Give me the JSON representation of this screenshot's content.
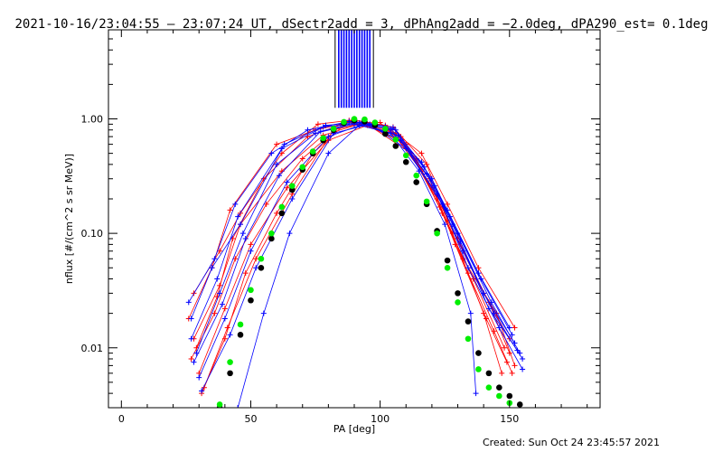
{
  "chart_data": {
    "type": "line",
    "title": "2021-10-16/23:04:55 – 23:07:24 UT, dSectr2add = 3, dPhAng2add = −2.0deg, dPA290_est=  0.1deg",
    "xlabel": "PA [deg]",
    "ylabel": "nflux [#/(cm^2 s sr MeV)]",
    "footer": "Created: Sun Oct 24 23:45:57 2021",
    "x_scale": "linear",
    "y_scale": "log",
    "xlim": [
      -5,
      185
    ],
    "ylim": [
      0.003,
      6
    ],
    "x_ticks": [
      {
        "value": 0,
        "label": "0"
      },
      {
        "value": 50,
        "label": "50"
      },
      {
        "value": 100,
        "label": "100"
      },
      {
        "value": 150,
        "label": "150"
      }
    ],
    "y_ticks": [
      {
        "value": 0.01,
        "label": "0.01"
      },
      {
        "value": 0.1,
        "label": "0.10"
      },
      {
        "value": 1,
        "label": "1.00"
      }
    ],
    "colors": {
      "red": "#ff0000",
      "blue": "#0000ff",
      "green": "#00ee00",
      "black": "#000000"
    },
    "series": [
      {
        "color": "red",
        "marker": "plus",
        "lines": [
          [
            [
              26,
              0.018
            ],
            [
              35,
              0.05
            ],
            [
              42,
              0.16
            ],
            [
              60,
              0.6
            ],
            [
              75,
              0.8
            ],
            [
              90,
              0.95
            ],
            [
              105,
              0.85
            ],
            [
              118,
              0.4
            ],
            [
              126,
              0.13
            ],
            [
              140,
              0.03
            ],
            [
              150,
              0.012
            ]
          ],
          [
            [
              28,
              0.012
            ],
            [
              38,
              0.035
            ],
            [
              46,
              0.12
            ],
            [
              62,
              0.35
            ],
            [
              78,
              0.72
            ],
            [
              92,
              0.9
            ],
            [
              108,
              0.7
            ],
            [
              122,
              0.2
            ],
            [
              132,
              0.06
            ],
            [
              145,
              0.02
            ],
            [
              152,
              0.007
            ]
          ],
          [
            [
              30,
              0.006
            ],
            [
              40,
              0.022
            ],
            [
              50,
              0.08
            ],
            [
              64,
              0.25
            ],
            [
              80,
              0.65
            ],
            [
              95,
              0.88
            ],
            [
              110,
              0.6
            ],
            [
              120,
              0.25
            ],
            [
              130,
              0.09
            ],
            [
              142,
              0.025
            ],
            [
              150,
              0.009
            ]
          ],
          [
            [
              27,
              0.008
            ],
            [
              36,
              0.02
            ],
            [
              44,
              0.06
            ],
            [
              56,
              0.18
            ],
            [
              70,
              0.45
            ],
            [
              86,
              0.92
            ],
            [
              100,
              0.93
            ],
            [
              114,
              0.45
            ],
            [
              124,
              0.15
            ],
            [
              136,
              0.04
            ],
            [
              148,
              0.01
            ]
          ],
          [
            [
              31,
              0.004
            ],
            [
              40,
              0.012
            ],
            [
              48,
              0.045
            ],
            [
              60,
              0.15
            ],
            [
              74,
              0.5
            ],
            [
              88,
              0.97
            ],
            [
              104,
              0.8
            ],
            [
              116,
              0.35
            ],
            [
              128,
              0.1
            ],
            [
              140,
              0.02
            ],
            [
              147,
              0.006
            ]
          ],
          [
            [
              28,
              0.03
            ],
            [
              38,
              0.07
            ],
            [
              46,
              0.15
            ],
            [
              62,
              0.5
            ],
            [
              76,
              0.9
            ],
            [
              90,
              0.98
            ],
            [
              102,
              0.88
            ],
            [
              116,
              0.5
            ],
            [
              126,
              0.18
            ],
            [
              138,
              0.05
            ],
            [
              152,
              0.015
            ]
          ],
          [
            [
              29,
              0.01
            ],
            [
              37,
              0.028
            ],
            [
              43,
              0.09
            ],
            [
              55,
              0.3
            ],
            [
              72,
              0.7
            ],
            [
              89,
              0.96
            ],
            [
              106,
              0.75
            ],
            [
              119,
              0.3
            ],
            [
              129,
              0.08
            ],
            [
              141,
              0.018
            ],
            [
              149,
              0.0075
            ]
          ],
          [
            [
              32,
              0.0045
            ],
            [
              41,
              0.015
            ],
            [
              52,
              0.06
            ],
            [
              66,
              0.22
            ],
            [
              82,
              0.8
            ],
            [
              94,
              0.93
            ],
            [
              112,
              0.5
            ],
            [
              123,
              0.17
            ],
            [
              134,
              0.045
            ],
            [
              144,
              0.014
            ],
            [
              151,
              0.006
            ]
          ]
        ]
      },
      {
        "color": "blue",
        "marker": "plus",
        "lines": [
          [
            [
              27,
              0.012
            ],
            [
              37,
              0.04
            ],
            [
              45,
              0.14
            ],
            [
              62,
              0.55
            ],
            [
              78,
              0.85
            ],
            [
              92,
              0.92
            ],
            [
              106,
              0.8
            ],
            [
              120,
              0.3
            ],
            [
              130,
              0.1
            ],
            [
              143,
              0.025
            ],
            [
              154,
              0.009
            ]
          ],
          [
            [
              29,
              0.009
            ],
            [
              38,
              0.03
            ],
            [
              47,
              0.1
            ],
            [
              60,
              0.4
            ],
            [
              75,
              0.75
            ],
            [
              90,
              0.9
            ],
            [
              104,
              0.82
            ],
            [
              118,
              0.33
            ],
            [
              128,
              0.12
            ],
            [
              140,
              0.03
            ],
            [
              152,
              0.011
            ]
          ],
          [
            [
              26,
              0.025
            ],
            [
              36,
              0.06
            ],
            [
              44,
              0.18
            ],
            [
              58,
              0.5
            ],
            [
              72,
              0.8
            ],
            [
              88,
              0.95
            ],
            [
              102,
              0.86
            ],
            [
              116,
              0.42
            ],
            [
              126,
              0.16
            ],
            [
              138,
              0.045
            ],
            [
              150,
              0.015
            ]
          ],
          [
            [
              30,
              0.0055
            ],
            [
              40,
              0.018
            ],
            [
              50,
              0.07
            ],
            [
              64,
              0.28
            ],
            [
              80,
              0.7
            ],
            [
              94,
              0.91
            ],
            [
              108,
              0.65
            ],
            [
              122,
              0.22
            ],
            [
              132,
              0.07
            ],
            [
              144,
              0.02
            ],
            [
              155,
              0.008
            ]
          ],
          [
            [
              28,
              0.0075
            ],
            [
              39,
              0.024
            ],
            [
              48,
              0.09
            ],
            [
              61,
              0.32
            ],
            [
              77,
              0.78
            ],
            [
              91,
              0.93
            ],
            [
              107,
              0.72
            ],
            [
              121,
              0.26
            ],
            [
              131,
              0.085
            ],
            [
              142,
              0.022
            ],
            [
              153,
              0.0095
            ]
          ],
          [
            [
              31,
              0.0042
            ],
            [
              42,
              0.013
            ],
            [
              52,
              0.05
            ],
            [
              66,
              0.2
            ],
            [
              82,
              0.75
            ],
            [
              96,
              0.9
            ],
            [
              110,
              0.55
            ],
            [
              124,
              0.18
            ],
            [
              134,
              0.05
            ],
            [
              146,
              0.015
            ],
            [
              155,
              0.0065
            ]
          ],
          [
            [
              27,
              0.018
            ],
            [
              35,
              0.05
            ],
            [
              46,
              0.12
            ],
            [
              63,
              0.6
            ],
            [
              79,
              0.88
            ],
            [
              93,
              0.94
            ],
            [
              105,
              0.84
            ],
            [
              117,
              0.38
            ],
            [
              127,
              0.14
            ],
            [
              139,
              0.04
            ],
            [
              151,
              0.013
            ]
          ],
          [
            [
              45,
              0.003
            ],
            [
              55,
              0.02
            ],
            [
              65,
              0.1
            ],
            [
              80,
              0.5
            ],
            [
              92,
              0.88
            ],
            [
              104,
              0.75
            ],
            [
              115,
              0.35
            ],
            [
              125,
              0.12
            ],
            [
              135,
              0.02
            ],
            [
              137,
              0.004
            ]
          ]
        ]
      },
      {
        "color": "black",
        "marker": "dot",
        "points": [
          [
            38,
            0.003
          ],
          [
            42,
            0.006
          ],
          [
            46,
            0.013
          ],
          [
            50,
            0.026
          ],
          [
            54,
            0.05
          ],
          [
            58,
            0.09
          ],
          [
            62,
            0.15
          ],
          [
            66,
            0.24
          ],
          [
            70,
            0.36
          ],
          [
            74,
            0.5
          ],
          [
            78,
            0.65
          ],
          [
            82,
            0.8
          ],
          [
            86,
            0.92
          ],
          [
            90,
            0.97
          ],
          [
            94,
            0.95
          ],
          [
            98,
            0.88
          ],
          [
            102,
            0.74
          ],
          [
            106,
            0.58
          ],
          [
            110,
            0.42
          ],
          [
            114,
            0.28
          ],
          [
            118,
            0.18
          ],
          [
            122,
            0.105
          ],
          [
            126,
            0.058
          ],
          [
            130,
            0.03
          ],
          [
            134,
            0.017
          ],
          [
            138,
            0.009
          ],
          [
            142,
            0.006
          ],
          [
            146,
            0.0045
          ],
          [
            150,
            0.0038
          ],
          [
            154,
            0.0032
          ]
        ]
      },
      {
        "color": "green",
        "marker": "dot",
        "points": [
          [
            38,
            0.0032
          ],
          [
            42,
            0.0075
          ],
          [
            46,
            0.016
          ],
          [
            50,
            0.032
          ],
          [
            54,
            0.06
          ],
          [
            58,
            0.1
          ],
          [
            62,
            0.17
          ],
          [
            66,
            0.26
          ],
          [
            70,
            0.38
          ],
          [
            74,
            0.52
          ],
          [
            78,
            0.68
          ],
          [
            82,
            0.82
          ],
          [
            86,
            0.94
          ],
          [
            90,
            1.0
          ],
          [
            94,
            0.99
          ],
          [
            98,
            0.93
          ],
          [
            102,
            0.82
          ],
          [
            106,
            0.66
          ],
          [
            110,
            0.48
          ],
          [
            114,
            0.32
          ],
          [
            118,
            0.19
          ],
          [
            122,
            0.1
          ],
          [
            126,
            0.05
          ],
          [
            130,
            0.025
          ],
          [
            134,
            0.012
          ],
          [
            138,
            0.0065
          ],
          [
            142,
            0.0045
          ],
          [
            146,
            0.0038
          ],
          [
            150,
            0.0033
          ]
        ]
      },
      {
        "color": "blue",
        "marker": "spike",
        "points": [
          [
            84,
            6
          ],
          [
            85,
            6
          ],
          [
            86,
            6
          ],
          [
            87,
            6
          ],
          [
            88,
            6
          ],
          [
            89,
            6
          ],
          [
            90,
            6
          ],
          [
            91,
            6
          ],
          [
            92,
            6
          ],
          [
            93,
            6
          ],
          [
            94,
            6
          ],
          [
            95,
            6
          ],
          [
            96,
            6
          ]
        ]
      }
    ]
  }
}
